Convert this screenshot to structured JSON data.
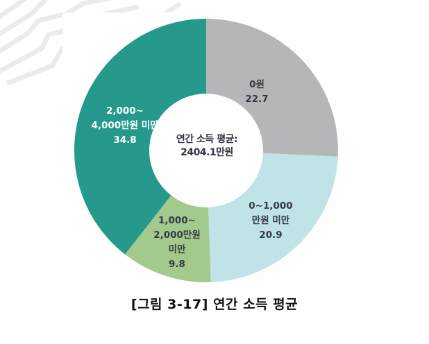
{
  "chart_data": {
    "type": "pie",
    "variant": "donut",
    "title": "[그림 3-17] 연간 소득 평균",
    "center_text": [
      "연간 소득 평균:",
      "2404.1만원"
    ],
    "categories": [
      "0원",
      "0~1,000만원 미만",
      "1,000~2,000만원 미만",
      "2,000~4,000만원 미만"
    ],
    "values": [
      22.7,
      20.9,
      9.8,
      34.8
    ],
    "colors": [
      "#b5b6b8",
      "#bfe3e7",
      "#a4c98c",
      "#25998c"
    ],
    "start_angle": "top, clockwise",
    "legend": "none (labels on slices)"
  },
  "labels": {
    "slice0": [
      "0원",
      "22.7"
    ],
    "slice1": [
      "0~1,000",
      "만원 미만",
      "20.9"
    ],
    "slice2": [
      "1,000~",
      "2,000만원",
      "미만",
      "9.8"
    ],
    "slice3": [
      "2,000~",
      "4,000만원 미만",
      "34.8"
    ]
  },
  "center": {
    "line1": "연간 소득 평균:",
    "line2": "2404.1만원"
  },
  "caption": "[그림 3-17] 연간 소득 평균"
}
